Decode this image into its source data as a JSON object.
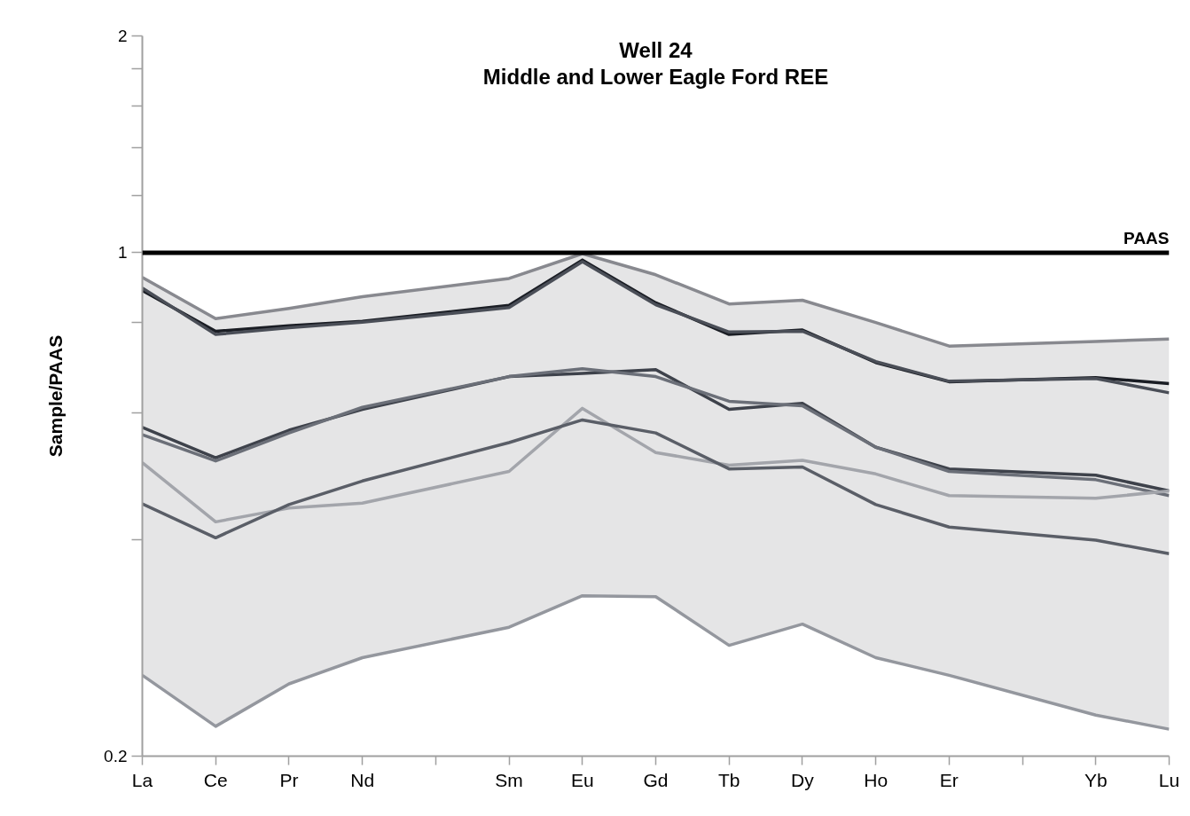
{
  "chart_data": {
    "type": "line",
    "title": "Well 24",
    "subtitle": "Middle and Lower Eagle Ford REE",
    "ylabel": "Sample/PAAS",
    "categories": [
      "La",
      "Ce",
      "Pr",
      "Nd",
      null,
      "Sm",
      "Eu",
      "Gd",
      "Tb",
      "Dy",
      "Ho",
      "Er",
      null,
      "Yb",
      "Lu"
    ],
    "log": "y",
    "ylim": [
      0.2,
      2
    ],
    "yticks": [
      0.2,
      {
        "value": 0.4,
        "label": null
      },
      {
        "value": 0.6,
        "label": null
      },
      {
        "value": 0.8,
        "label": null
      },
      1,
      {
        "value": 1.2,
        "label": null
      },
      {
        "value": 1.4,
        "label": null
      },
      {
        "value": 1.6,
        "label": null
      },
      {
        "value": 1.8,
        "label": null
      },
      2
    ],
    "grid": false,
    "marker": "none",
    "line_style": "solid",
    "series": [
      {
        "color": "#88898f",
        "values": [
          0.924,
          0.81,
          0.837,
          0.869,
          null,
          0.921,
          0.997,
          0.932,
          0.849,
          0.859,
          0.8,
          0.742,
          null,
          0.753,
          0.759
        ],
        "lower": [
          0.259,
          0.22,
          0.252,
          0.274,
          null,
          0.302,
          0.334,
          0.333,
          0.285,
          0.305,
          0.274,
          0.259,
          null,
          0.228,
          0.218
        ],
        "upper": [
          0.924,
          0.81,
          0.837,
          0.869,
          null,
          0.921,
          0.997,
          0.932,
          0.849,
          0.859,
          0.8,
          0.742,
          null,
          0.753,
          0.759
        ]
      },
      {
        "color": "#1a1d24",
        "values": [
          0.886,
          0.778,
          0.792,
          0.803,
          null,
          0.845,
          0.977,
          0.852,
          0.77,
          0.781,
          0.704,
          0.662,
          null,
          0.671,
          0.658
        ]
      },
      {
        "color": "#4a4e57",
        "values": [
          0.893,
          0.77,
          0.787,
          0.801,
          null,
          0.839,
          0.972,
          0.847,
          0.776,
          0.778,
          0.706,
          0.663,
          null,
          0.669,
          0.639
        ]
      },
      {
        "color": "#3e424b",
        "values": [
          0.572,
          0.519,
          0.567,
          0.606,
          null,
          0.673,
          0.68,
          0.688,
          0.606,
          0.618,
          0.537,
          0.501,
          null,
          0.491,
          0.467
        ]
      },
      {
        "color": "#6b6f78",
        "values": [
          0.559,
          0.514,
          0.562,
          0.61,
          null,
          0.673,
          0.69,
          0.673,
          0.622,
          0.613,
          0.537,
          0.497,
          null,
          0.484,
          0.46
        ]
      },
      {
        "color": "#a3a5ab",
        "values": [
          0.511,
          0.423,
          0.442,
          0.449,
          null,
          0.497,
          0.608,
          0.528,
          0.507,
          0.515,
          0.493,
          0.46,
          null,
          0.456,
          0.467
        ]
      },
      {
        "color": "#5a5e67",
        "values": [
          0.448,
          0.402,
          0.447,
          0.482,
          null,
          0.545,
          0.586,
          0.562,
          0.501,
          0.504,
          0.447,
          0.416,
          null,
          0.399,
          0.382
        ]
      },
      {
        "color": "#94979e",
        "values": [
          0.259,
          0.22,
          0.252,
          0.274,
          null,
          0.302,
          0.334,
          0.333,
          0.285,
          0.305,
          0.274,
          0.259,
          null,
          0.228,
          0.218
        ]
      }
    ],
    "ref_lines": [
      {
        "axis": "y",
        "value": 1,
        "label": "PAAS",
        "color": "#000000",
        "line_style": "solid"
      }
    ]
  }
}
